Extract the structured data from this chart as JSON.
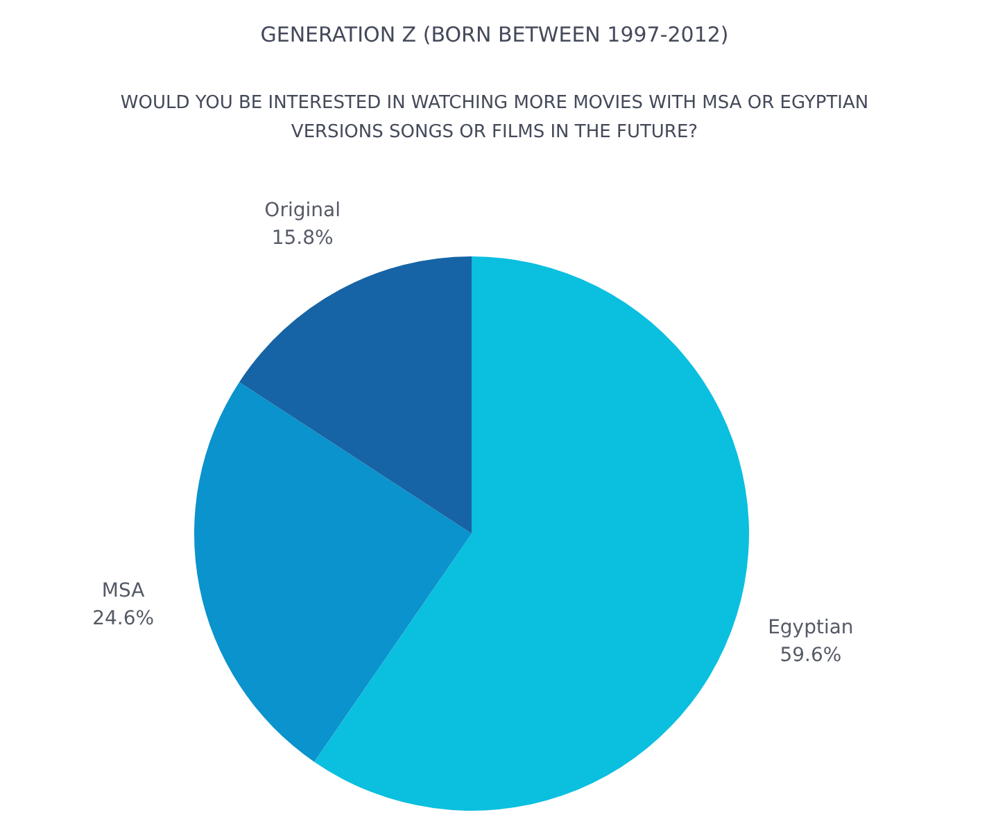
{
  "chart_data": {
    "type": "pie",
    "title": "GENERATION Z (BORN BETWEEN 1997-2012)",
    "subtitle": "WOULD YOU BE INTERESTED IN WATCHING MORE MOVIES WITH MSA OR EGYPTIAN VERSIONS SONGS OR FILMS IN THE FUTURE?",
    "categories": [
      "Egyptian",
      "MSA",
      "Original"
    ],
    "values": [
      59.6,
      24.6,
      15.8
    ],
    "value_labels": [
      "59.6%",
      "24.6%",
      "15.8%"
    ],
    "colors": [
      "#0bbfdf",
      "#0a93cc",
      "#1664a5"
    ]
  }
}
